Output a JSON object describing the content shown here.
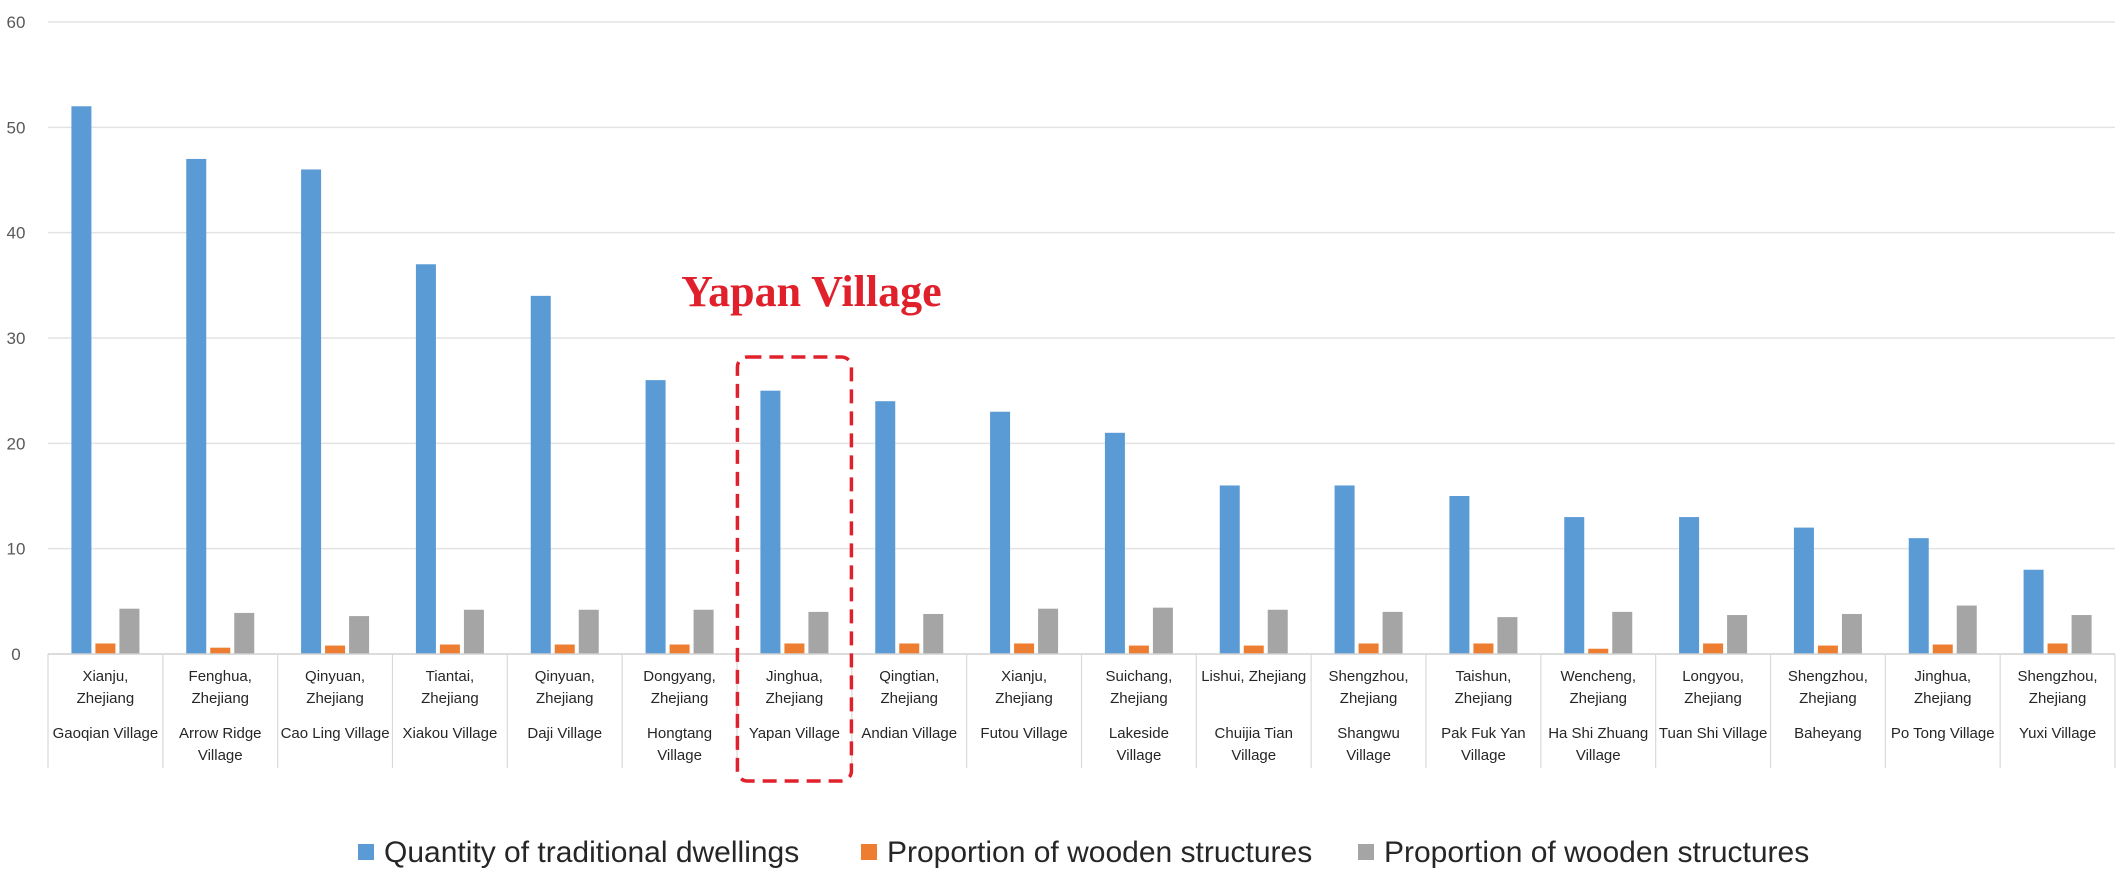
{
  "chart_data": {
    "type": "bar",
    "title": "",
    "xlabel": "",
    "ylabel": "",
    "ylim": [
      0,
      60
    ],
    "yticks": [
      0,
      10,
      20,
      30,
      40,
      50,
      60
    ],
    "grid": true,
    "legend_position": "bottom",
    "categories": [
      {
        "line1": "Xianju,",
        "line2": "Zhejiang",
        "village": [
          "Gaoqian Village"
        ]
      },
      {
        "line1": "Fenghua,",
        "line2": "Zhejiang",
        "village": [
          "Arrow Ridge",
          "Village"
        ]
      },
      {
        "line1": "Qinyuan,",
        "line2": "Zhejiang",
        "village": [
          "Cao Ling Village"
        ]
      },
      {
        "line1": "Tiantai,",
        "line2": "Zhejiang",
        "village": [
          "Xiakou Village"
        ]
      },
      {
        "line1": "Qinyuan,",
        "line2": "Zhejiang",
        "village": [
          "Daji Village"
        ]
      },
      {
        "line1": "Dongyang,",
        "line2": "Zhejiang",
        "village": [
          "Hongtang",
          "Village"
        ]
      },
      {
        "line1": "Jinghua,",
        "line2": "Zhejiang",
        "village": [
          "Yapan Village"
        ]
      },
      {
        "line1": "Qingtian,",
        "line2": "Zhejiang",
        "village": [
          "Andian Village"
        ]
      },
      {
        "line1": "Xianju,",
        "line2": "Zhejiang",
        "village": [
          "Futou Village"
        ]
      },
      {
        "line1": "Suichang,",
        "line2": "Zhejiang",
        "village": [
          "Lakeside",
          "Village"
        ]
      },
      {
        "line1": "Lishui, Zhejiang",
        "line2": "",
        "village": [
          "Chuijia Tian",
          "Village"
        ]
      },
      {
        "line1": "Shengzhou,",
        "line2": "Zhejiang",
        "village": [
          "Shangwu",
          "Village"
        ]
      },
      {
        "line1": "Taishun,",
        "line2": "Zhejiang",
        "village": [
          "Pak Fuk Yan",
          "Village"
        ]
      },
      {
        "line1": "Wencheng,",
        "line2": "Zhejiang",
        "village": [
          "Ha Shi Zhuang",
          "Village"
        ]
      },
      {
        "line1": "Longyou,",
        "line2": "Zhejiang",
        "village": [
          "Tuan Shi Village"
        ]
      },
      {
        "line1": "Shengzhou,",
        "line2": "Zhejiang",
        "village": [
          "Baheyang"
        ]
      },
      {
        "line1": "Jinghua,",
        "line2": "Zhejiang",
        "village": [
          "Po Tong Village"
        ]
      },
      {
        "line1": "Shengzhou,",
        "line2": "Zhejiang",
        "village": [
          "Yuxi Village"
        ]
      }
    ],
    "series": [
      {
        "name": "Quantity of traditional dwellings",
        "color": "#5b9bd5",
        "values": [
          52,
          47,
          46,
          37,
          34,
          26,
          25,
          24,
          23,
          21,
          16,
          16,
          15,
          13,
          13,
          12,
          11,
          8
        ]
      },
      {
        "name": "Proportion of wooden structures",
        "color": "#ed7d31",
        "values": [
          1.0,
          0.6,
          0.8,
          0.9,
          0.9,
          0.9,
          1.0,
          1.0,
          1.0,
          0.8,
          0.8,
          1.0,
          1.0,
          0.5,
          1.0,
          0.8,
          0.9,
          1.0
        ]
      },
      {
        "name": "Proportion of wooden structures",
        "color": "#a5a5a5",
        "values": [
          4.3,
          3.9,
          3.6,
          4.2,
          4.2,
          4.2,
          4.0,
          3.8,
          4.3,
          4.4,
          4.2,
          4.0,
          3.5,
          4.0,
          3.7,
          3.8,
          4.6,
          3.7
        ]
      }
    ],
    "annotation": {
      "text": "Yapan Village",
      "category_index": 6,
      "color": "#e0202b"
    }
  }
}
